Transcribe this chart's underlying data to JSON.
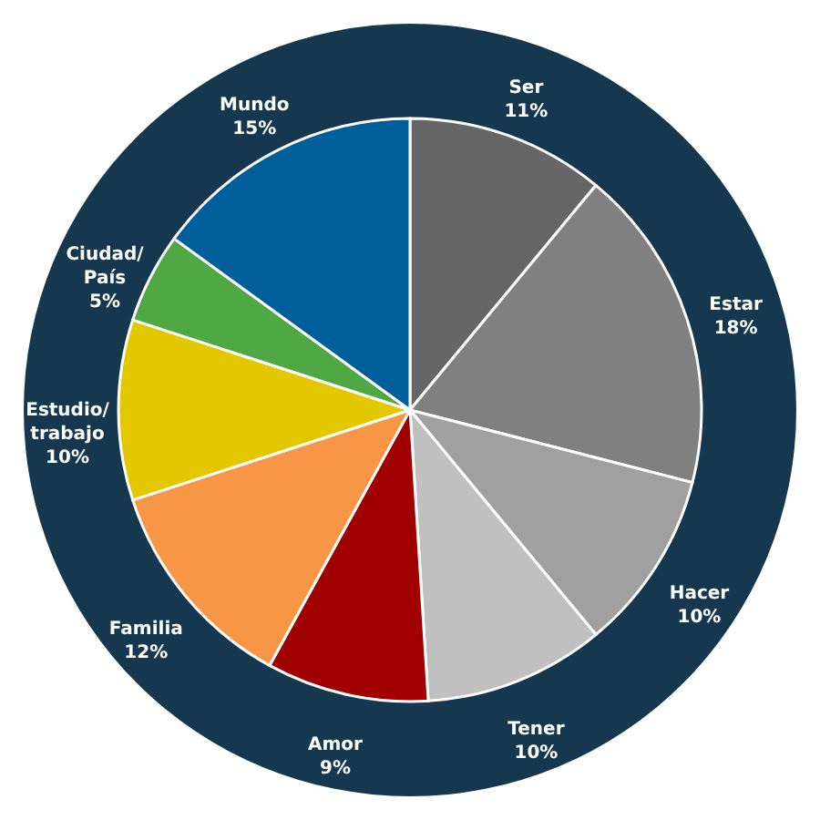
{
  "chart_data": {
    "type": "pie",
    "categories": [
      "Ser",
      "Estar",
      "Hacer",
      "Tener",
      "Amor",
      "Familia",
      "Estudio/trabajo",
      "Ciudad/País",
      "Mundo"
    ],
    "values": [
      11,
      18,
      10,
      10,
      9,
      12,
      10,
      5,
      15
    ],
    "value_labels": [
      "11%",
      "18%",
      "10%",
      "10%",
      "9%",
      "12%",
      "10%",
      "5%",
      "15%"
    ],
    "colors": [
      "#666666",
      "#808080",
      "#a0a0a0",
      "#c0c0c0",
      "#a00000",
      "#f79646",
      "#e3c800",
      "#4fa843",
      "#005f9a"
    ]
  }
}
